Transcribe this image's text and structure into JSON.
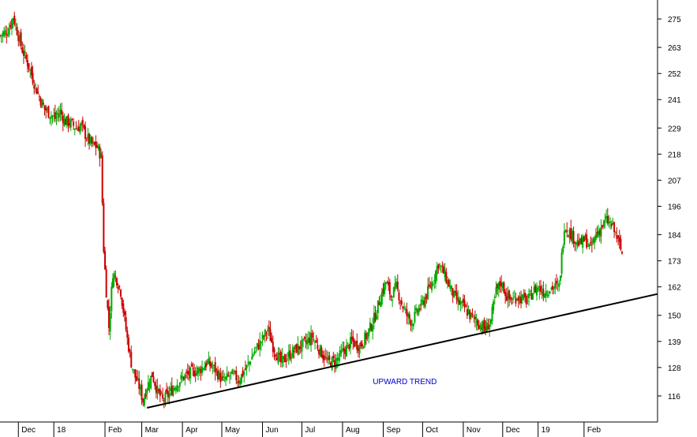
{
  "chart_data": {
    "type": "candlestick",
    "title": "",
    "xlabel": "",
    "ylabel": "",
    "y_axis_position": "right",
    "ylim": [
      105,
      283
    ],
    "y_ticks": [
      116,
      128,
      139,
      150,
      162,
      173,
      184,
      196,
      207,
      218,
      229,
      241,
      252,
      263,
      275
    ],
    "x_ticks": [
      {
        "label": "Dec",
        "day": 0
      },
      {
        "label": "18",
        "day": 27
      },
      {
        "label": "Feb",
        "day": 66
      },
      {
        "label": "Mar",
        "day": 94
      },
      {
        "label": "Apr",
        "day": 125
      },
      {
        "label": "May",
        "day": 155
      },
      {
        "label": "Jun",
        "day": 186
      },
      {
        "label": "Jul",
        "day": 216
      },
      {
        "label": "Aug",
        "day": 247
      },
      {
        "label": "Sep",
        "day": 278
      },
      {
        "label": "Oct",
        "day": 308
      },
      {
        "label": "Nov",
        "day": 339
      },
      {
        "label": "Dec",
        "day": 369
      },
      {
        "label": "19",
        "day": 396
      },
      {
        "label": "Feb",
        "day": 431
      }
    ],
    "xlim": [
      -14,
      487
    ],
    "colors": {
      "up": "#00aa00",
      "down": "#cc0000",
      "trendline": "#000000",
      "annotation": "#0000cc",
      "axis": "#000000"
    },
    "series": [
      {
        "name": "",
        "type": "close_path",
        "points": [
          [
            -14,
            268
          ],
          [
            -8,
            270
          ],
          [
            -4,
            276
          ],
          [
            0,
            268
          ],
          [
            3,
            262
          ],
          [
            8,
            255
          ],
          [
            12,
            248
          ],
          [
            16,
            242
          ],
          [
            20,
            237
          ],
          [
            24,
            235
          ],
          [
            28,
            233
          ],
          [
            32,
            236
          ],
          [
            35,
            232
          ],
          [
            40,
            231
          ],
          [
            44,
            229
          ],
          [
            48,
            230
          ],
          [
            52,
            225
          ],
          [
            56,
            222
          ],
          [
            60,
            221
          ],
          [
            63,
            217
          ],
          [
            65,
            178
          ],
          [
            67,
            160
          ],
          [
            69,
            145
          ],
          [
            72,
            168
          ],
          [
            75,
            165
          ],
          [
            78,
            160
          ],
          [
            80,
            152
          ],
          [
            83,
            140
          ],
          [
            86,
            130
          ],
          [
            89,
            124
          ],
          [
            92,
            120
          ],
          [
            95,
            114
          ],
          [
            98,
            120
          ],
          [
            102,
            125
          ],
          [
            106,
            118
          ],
          [
            110,
            114
          ],
          [
            115,
            117
          ],
          [
            120,
            121
          ],
          [
            126,
            124
          ],
          [
            132,
            126
          ],
          [
            138,
            127
          ],
          [
            144,
            130
          ],
          [
            150,
            127
          ],
          [
            156,
            122
          ],
          [
            162,
            125
          ],
          [
            168,
            123
          ],
          [
            174,
            128
          ],
          [
            180,
            135
          ],
          [
            186,
            140
          ],
          [
            190,
            144
          ],
          [
            194,
            137
          ],
          [
            200,
            130
          ],
          [
            206,
            133
          ],
          [
            212,
            136
          ],
          [
            218,
            138
          ],
          [
            224,
            141
          ],
          [
            230,
            135
          ],
          [
            236,
            130
          ],
          [
            242,
            131
          ],
          [
            248,
            135
          ],
          [
            254,
            139
          ],
          [
            260,
            137
          ],
          [
            266,
            142
          ],
          [
            272,
            150
          ],
          [
            276,
            158
          ],
          [
            280,
            164
          ],
          [
            284,
            158
          ],
          [
            288,
            162
          ],
          [
            292,
            155
          ],
          [
            296,
            150
          ],
          [
            300,
            147
          ],
          [
            304,
            152
          ],
          [
            308,
            155
          ],
          [
            312,
            160
          ],
          [
            316,
            165
          ],
          [
            320,
            172
          ],
          [
            324,
            168
          ],
          [
            328,
            163
          ],
          [
            332,
            158
          ],
          [
            336,
            155
          ],
          [
            340,
            153
          ],
          [
            344,
            150
          ],
          [
            348,
            148
          ],
          [
            352,
            146
          ],
          [
            356,
            144
          ],
          [
            360,
            148
          ],
          [
            364,
            160
          ],
          [
            368,
            164
          ],
          [
            372,
            158
          ],
          [
            376,
            156
          ],
          [
            380,
            158
          ],
          [
            384,
            157
          ],
          [
            388,
            156
          ],
          [
            392,
            160
          ],
          [
            396,
            162
          ],
          [
            400,
            160
          ],
          [
            404,
            161
          ],
          [
            408,
            162
          ],
          [
            412,
            162
          ],
          [
            416,
            188
          ],
          [
            420,
            185
          ],
          [
            424,
            182
          ],
          [
            428,
            180
          ],
          [
            432,
            182
          ],
          [
            436,
            178
          ],
          [
            440,
            184
          ],
          [
            444,
            187
          ],
          [
            448,
            190
          ],
          [
            452,
            188
          ],
          [
            456,
            183
          ],
          [
            460,
            176
          ]
        ]
      },
      {
        "name": "",
        "type": "line",
        "points": [
          [
            98,
            111
          ],
          [
            487,
            159
          ]
        ]
      }
    ],
    "annotations": [
      {
        "text": "UPWARD TREND",
        "x": 270,
        "y": 121
      }
    ]
  }
}
